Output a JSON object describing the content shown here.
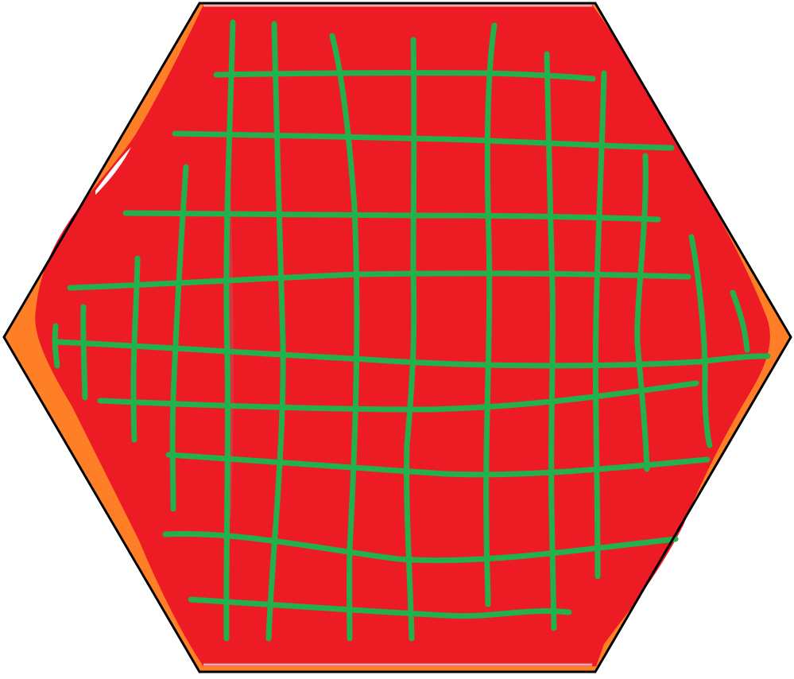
{
  "drawing": {
    "shape": "hexagon",
    "colors": {
      "background": "#ffffff",
      "outline": "#000000",
      "outer_fill": "#ff7f27",
      "inner_fill": "#ed1c24",
      "grid_lines": "#22b14c"
    }
  }
}
